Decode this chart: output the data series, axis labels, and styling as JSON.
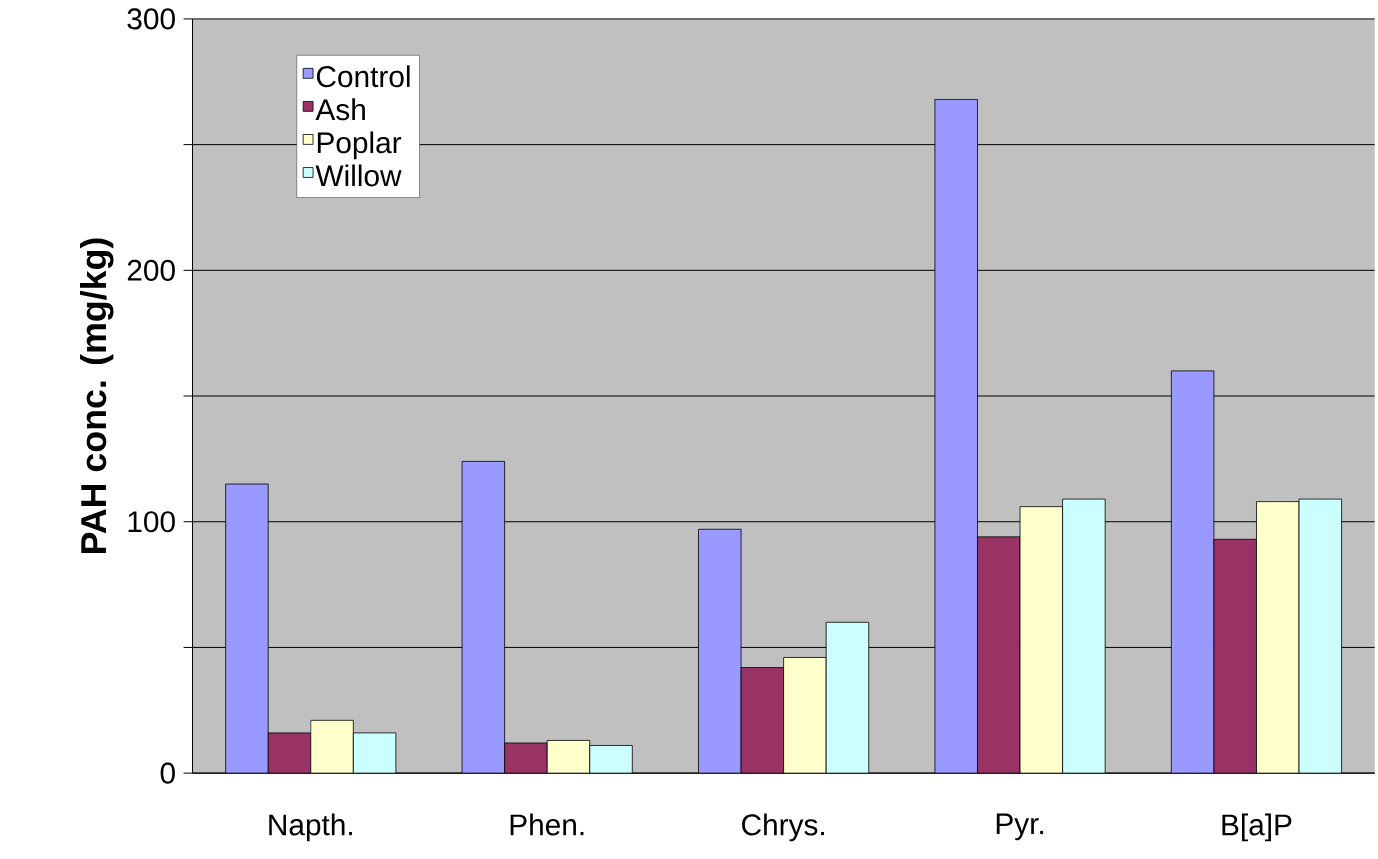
{
  "chart_data": {
    "type": "bar",
    "ylabel": "PAH conc. (mg/kg)",
    "categories": [
      "Napth.",
      "Phen.",
      "Chrys.",
      "Pyr.",
      "B[a]P"
    ],
    "series": [
      {
        "name": "Control",
        "color": "#9999ff",
        "values": [
          115,
          124,
          97,
          268,
          160
        ]
      },
      {
        "name": "Ash",
        "color": "#993366",
        "values": [
          16,
          12,
          42,
          94,
          93
        ]
      },
      {
        "name": "Poplar",
        "color": "#ffffcc",
        "values": [
          21,
          13,
          46,
          106,
          108
        ]
      },
      {
        "name": "Willow",
        "color": "#ccffff",
        "values": [
          16,
          11,
          60,
          109,
          109
        ]
      }
    ],
    "ylim": [
      0,
      300
    ],
    "yticks": [
      0,
      {
        "value": 50,
        "label": null
      },
      100,
      {
        "value": 150,
        "label": null
      },
      200,
      {
        "value": 250,
        "label": null
      },
      300
    ],
    "grid": "y",
    "legend": "top left"
  }
}
